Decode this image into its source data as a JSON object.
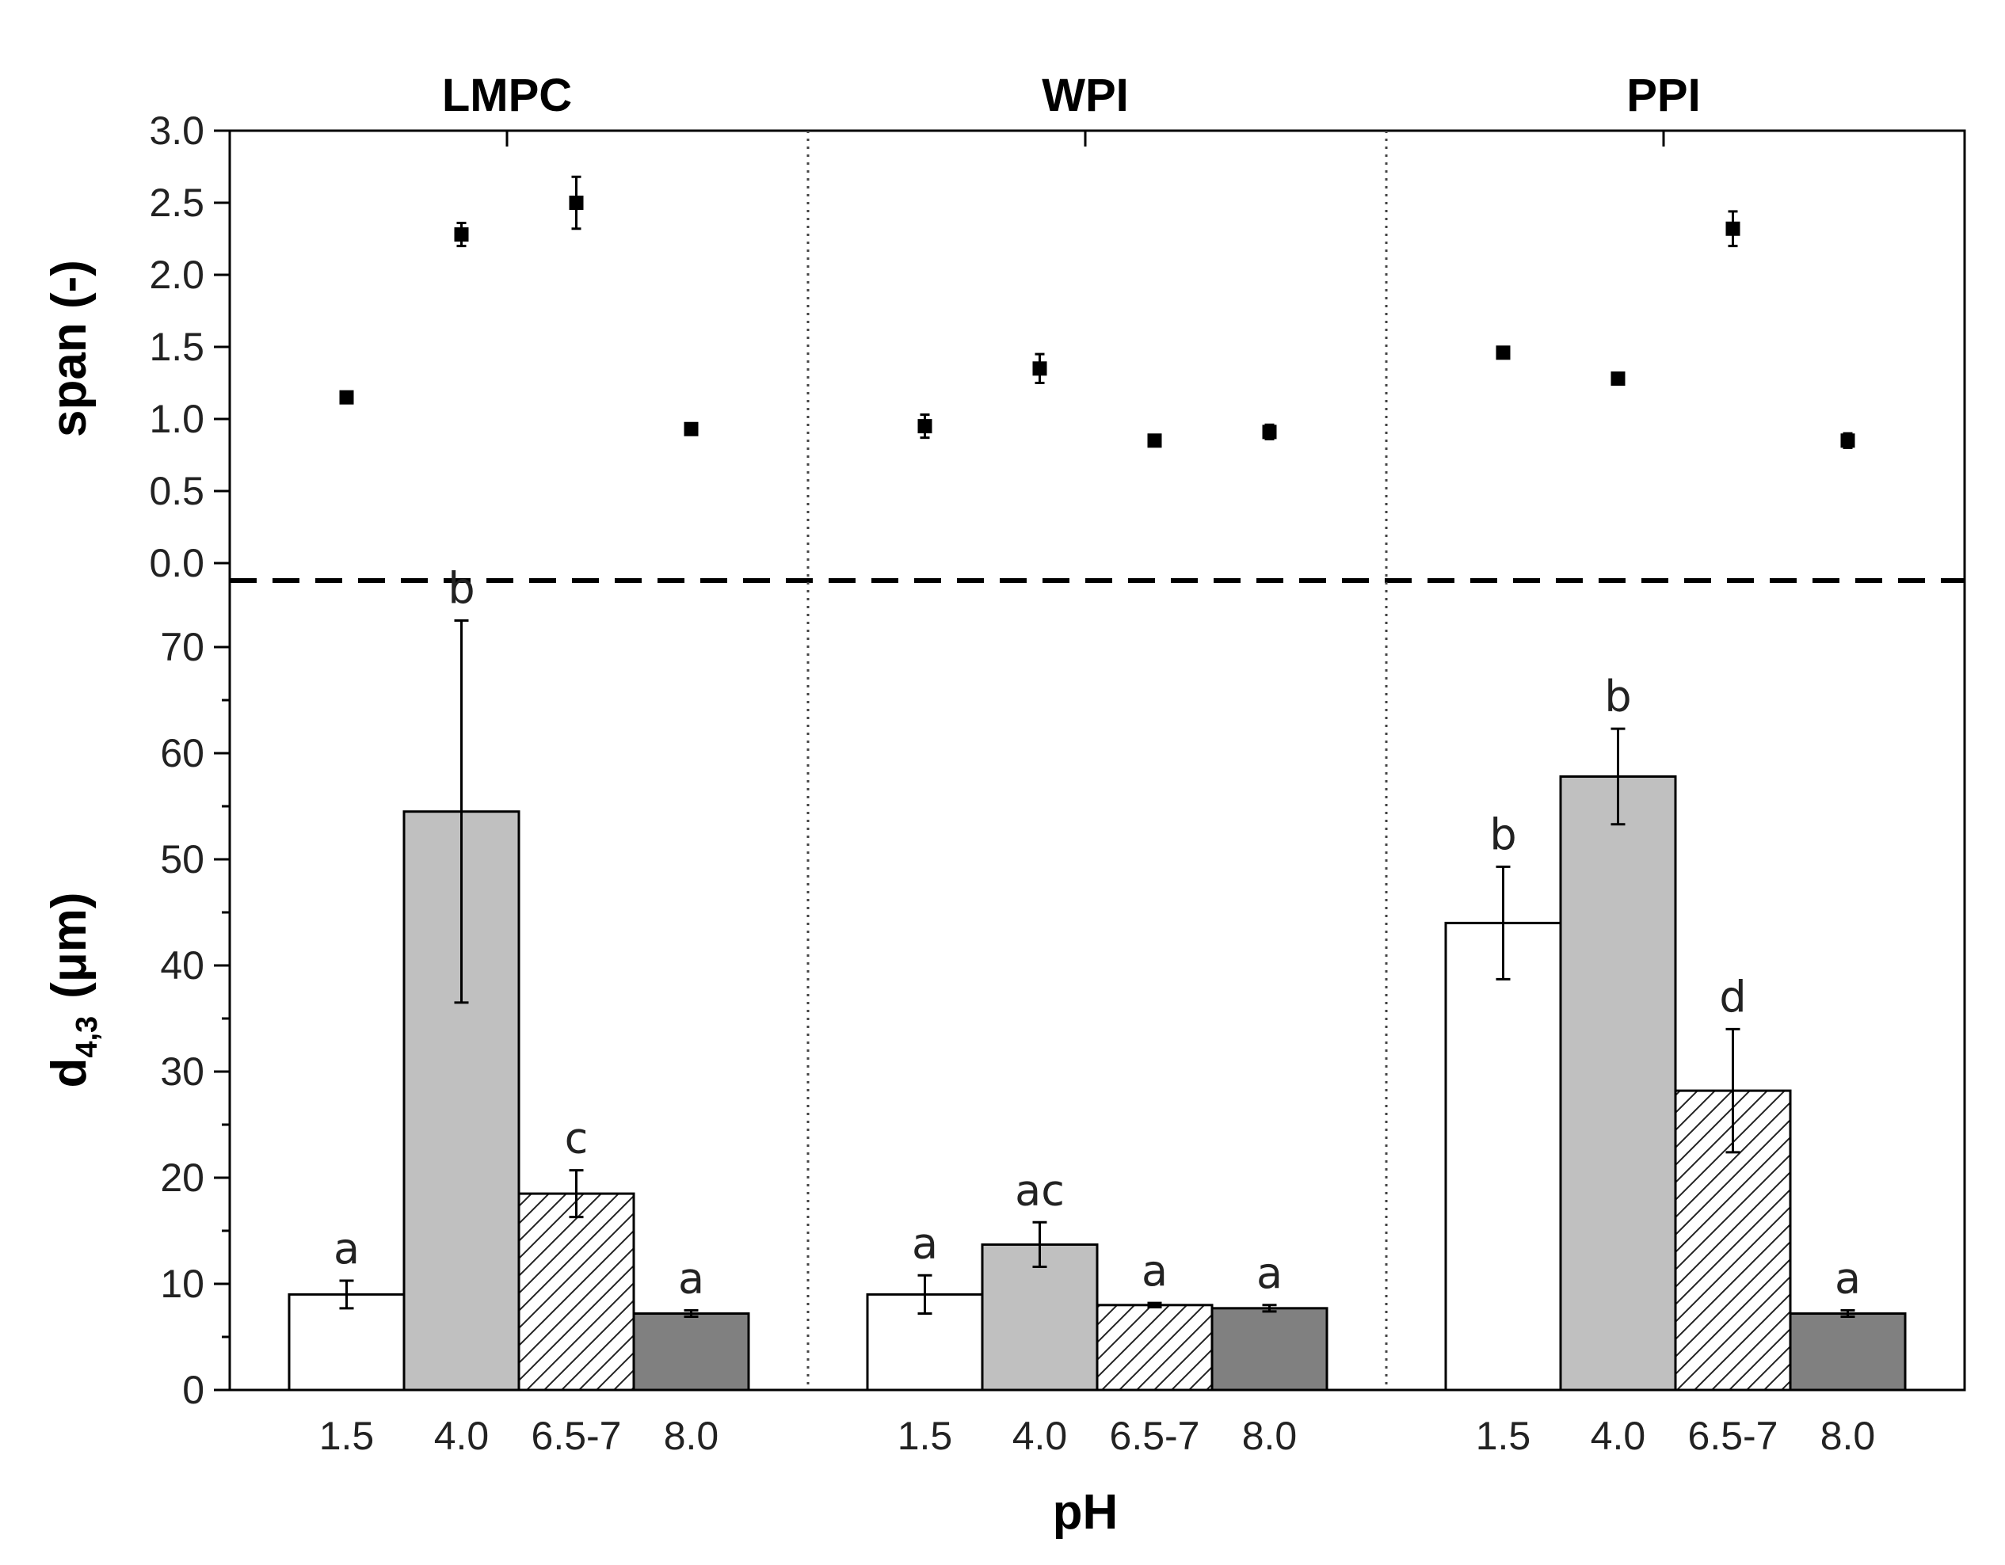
{
  "chart_data": {
    "type": "bar",
    "groups": [
      "LMPC",
      "WPI",
      "PPI"
    ],
    "categories": [
      "1.5",
      "4.0",
      "6.5-7",
      "8.0"
    ],
    "xlabel": "pH",
    "span_panel": {
      "type": "scatter",
      "ylabel": "span (-)",
      "ylim": [
        0.0,
        3.0
      ],
      "yticks": [
        "0.0",
        "0.5",
        "1.0",
        "1.5",
        "2.0",
        "2.5",
        "3.0"
      ],
      "series": [
        {
          "group": "LMPC",
          "values": [
            1.15,
            2.28,
            2.5,
            0.93
          ],
          "errors": [
            0.03,
            0.08,
            0.18,
            0.02
          ]
        },
        {
          "group": "WPI",
          "values": [
            0.95,
            1.35,
            0.85,
            0.91
          ],
          "errors": [
            0.08,
            0.1,
            0.02,
            0.05
          ]
        },
        {
          "group": "PPI",
          "values": [
            1.46,
            1.28,
            2.32,
            0.85
          ],
          "errors": [
            0.02,
            0.02,
            0.12,
            0.05
          ]
        }
      ]
    },
    "d43_panel": {
      "type": "bar",
      "ylabel_main": "d",
      "ylabel_sub": "4,3",
      "ylabel_unit": "(μm)",
      "ylim": [
        0,
        75
      ],
      "yticks": [
        "0",
        "10",
        "20",
        "30",
        "40",
        "50",
        "60",
        "70"
      ],
      "series": [
        {
          "group": "LMPC",
          "values": [
            9.0,
            54.5,
            18.5,
            7.2
          ],
          "errors": [
            1.3,
            18.0,
            2.2,
            0.3
          ],
          "letters": [
            "a",
            "b",
            "c",
            "a"
          ]
        },
        {
          "group": "WPI",
          "values": [
            9.0,
            13.7,
            8.0,
            7.7
          ],
          "errors": [
            1.8,
            2.1,
            0.2,
            0.3
          ],
          "letters": [
            "a",
            "ac",
            "a",
            "a"
          ]
        },
        {
          "group": "PPI",
          "values": [
            44.0,
            57.8,
            28.2,
            7.2
          ],
          "errors": [
            5.3,
            4.5,
            5.8,
            0.3
          ],
          "letters": [
            "b",
            "b",
            "d",
            "a"
          ]
        }
      ]
    },
    "bar_styles": [
      {
        "category": "1.5",
        "fill": "#ffffff",
        "pattern": "none"
      },
      {
        "category": "4.0",
        "fill": "#c0c0c0",
        "pattern": "none"
      },
      {
        "category": "6.5-7",
        "fill": "#ffffff",
        "pattern": "diagonal-hatch"
      },
      {
        "category": "8.0",
        "fill": "#808080",
        "pattern": "none"
      }
    ]
  }
}
